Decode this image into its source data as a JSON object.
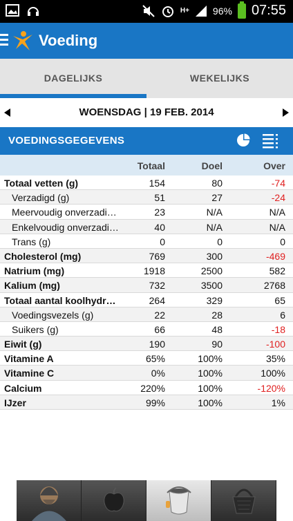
{
  "status_bar": {
    "battery": "96%",
    "network": "H+",
    "time": "07:55",
    "icons": [
      "image-icon",
      "headphones-icon",
      "mute-icon",
      "alarm-icon",
      "signal-icon",
      "battery-icon"
    ]
  },
  "app": {
    "title": "Voeding",
    "accent": "#1976c5"
  },
  "tabs": [
    {
      "label": "DAGELIJKS",
      "active": true
    },
    {
      "label": "WEKELIJKS",
      "active": false
    }
  ],
  "date_nav": {
    "label": "WOENSDAG | 19 FEB. 2014"
  },
  "section": {
    "title": "VOEDINGSGEGEVENS",
    "icons": [
      "pie-chart-icon",
      "list-icon"
    ]
  },
  "table": {
    "columns": [
      "Totaal",
      "Doel",
      "Over"
    ],
    "rows": [
      {
        "label": "Totaal vetten (g)",
        "totaal": "154",
        "doel": "80",
        "over": "-74",
        "negative": true,
        "bold": true,
        "sub": false
      },
      {
        "label": "Verzadigd (g)",
        "totaal": "51",
        "doel": "27",
        "over": "-24",
        "negative": true,
        "bold": false,
        "sub": true
      },
      {
        "label": "Meervoudig onverzadi…",
        "totaal": "23",
        "doel": "N/A",
        "over": "N/A",
        "negative": false,
        "bold": false,
        "sub": true
      },
      {
        "label": "Enkelvoudig onverzadi…",
        "totaal": "40",
        "doel": "N/A",
        "over": "N/A",
        "negative": false,
        "bold": false,
        "sub": true
      },
      {
        "label": "Trans (g)",
        "totaal": "0",
        "doel": "0",
        "over": "0",
        "negative": false,
        "bold": false,
        "sub": true
      },
      {
        "label": "Cholesterol (mg)",
        "totaal": "769",
        "doel": "300",
        "over": "-469",
        "negative": true,
        "bold": true,
        "sub": false
      },
      {
        "label": "Natrium (mg)",
        "totaal": "1918",
        "doel": "2500",
        "over": "582",
        "negative": false,
        "bold": true,
        "sub": false
      },
      {
        "label": "Kalium (mg)",
        "totaal": "732",
        "doel": "3500",
        "over": "2768",
        "negative": false,
        "bold": true,
        "sub": false
      },
      {
        "label": "Totaal aantal koolhydrat…",
        "totaal": "264",
        "doel": "329",
        "over": "65",
        "negative": false,
        "bold": true,
        "sub": false
      },
      {
        "label": "Voedingsvezels (g)",
        "totaal": "22",
        "doel": "28",
        "over": "6",
        "negative": false,
        "bold": false,
        "sub": true
      },
      {
        "label": "Suikers (g)",
        "totaal": "66",
        "doel": "48",
        "over": "-18",
        "negative": true,
        "bold": false,
        "sub": true
      },
      {
        "label": "Eiwit (g)",
        "totaal": "190",
        "doel": "90",
        "over": "-100",
        "negative": true,
        "bold": true,
        "sub": false
      },
      {
        "label": "Vitamine A",
        "totaal": "65%",
        "doel": "100%",
        "over": "35%",
        "negative": false,
        "bold": true,
        "sub": false
      },
      {
        "label": "Vitamine C",
        "totaal": "0%",
        "doel": "100%",
        "over": "100%",
        "negative": false,
        "bold": true,
        "sub": false
      },
      {
        "label": "Calcium",
        "totaal": "220%",
        "doel": "100%",
        "over": "-120%",
        "negative": true,
        "bold": true,
        "sub": false
      },
      {
        "label": "IJzer",
        "totaal": "99%",
        "doel": "100%",
        "over": "1%",
        "negative": false,
        "bold": true,
        "sub": false
      }
    ]
  },
  "bottom_nav": [
    {
      "icon": "profile-character-icon",
      "active": false
    },
    {
      "icon": "apple-icon",
      "active": false
    },
    {
      "icon": "bucket-icon",
      "active": true
    },
    {
      "icon": "basket-icon",
      "active": false
    }
  ]
}
